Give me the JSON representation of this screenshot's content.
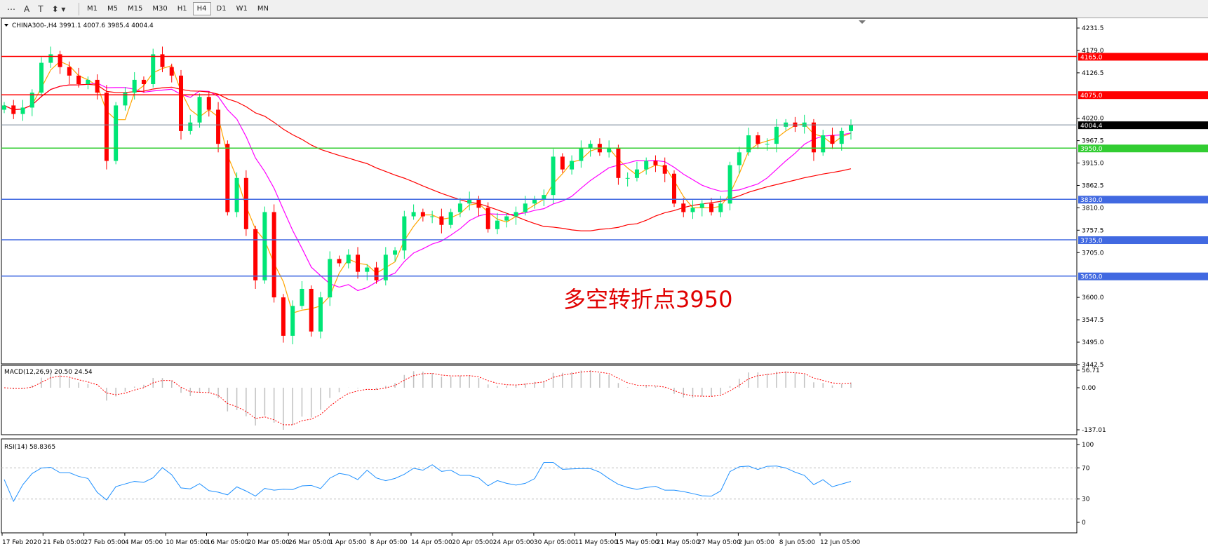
{
  "toolbar": {
    "tools": [
      {
        "name": "fibo-tool-icon",
        "glyph": "⋯"
      },
      {
        "name": "text-tool-icon",
        "glyph": "A"
      },
      {
        "name": "text-label-icon",
        "glyph": "T"
      },
      {
        "name": "arrows-tool-icon",
        "glyph": "⬍ ▾"
      }
    ],
    "timeframes": [
      "M1",
      "M5",
      "M15",
      "M30",
      "H1",
      "H4",
      "D1",
      "W1",
      "MN"
    ],
    "active_timeframe": "H4"
  },
  "chart": {
    "symbol_header": "CHINA300-,H4  3991.1 4007.6 3985.4 4004.4",
    "annotation": "多空转折点3950",
    "price_ticks": [
      "4231.5",
      "4179.0",
      "4126.5",
      "4020.0",
      "3967.5",
      "3915.0",
      "3862.5",
      "3810.0",
      "3757.5",
      "3705.0",
      "3600.0",
      "3547.5",
      "3495.0",
      "3442.5"
    ],
    "levels": [
      {
        "label": "4165.0",
        "value": 4165,
        "color": "#ff0000"
      },
      {
        "label": "4075.0",
        "value": 4075,
        "color": "#ff0000"
      },
      {
        "label": "3950.0",
        "value": 3950,
        "color": "#32cd32"
      },
      {
        "label": "3830.0",
        "value": 3830,
        "color": "#4169e1"
      },
      {
        "label": "3735.0",
        "value": 3735,
        "color": "#4169e1"
      },
      {
        "label": "3650.0",
        "value": 3650,
        "color": "#4169e1"
      }
    ],
    "current_price": {
      "label": "4004.4",
      "value": 4004.4,
      "color": "#000000"
    },
    "colors": {
      "bull": "#00e676",
      "bear": "#ff0000",
      "ma_fast": "#ffa500",
      "ma_mid": "#ff00ff",
      "ma_slow": "#ff0000"
    },
    "closes": [
      4050,
      4030,
      4045,
      4080,
      4150,
      4170,
      4140,
      4120,
      4100,
      4110,
      4080,
      3920,
      4050,
      4080,
      4110,
      4100,
      4170,
      4140,
      4120,
      3990,
      4010,
      4070,
      4040,
      3960,
      3800,
      3880,
      3760,
      3640,
      3800,
      3600,
      3510,
      3580,
      3620,
      3520,
      3600,
      3690,
      3680,
      3700,
      3660,
      3670,
      3640,
      3700,
      3710,
      3790,
      3800,
      3790,
      3790,
      3770,
      3800,
      3820,
      3830,
      3810,
      3760,
      3780,
      3790,
      3800,
      3820,
      3830,
      3840,
      3930,
      3900,
      3920,
      3950,
      3960,
      3940,
      3950,
      3880,
      3880,
      3900,
      3920,
      3910,
      3890,
      3820,
      3800,
      3810,
      3820,
      3800,
      3820,
      3910,
      3940,
      3980,
      3960,
      3960,
      4000,
      4010,
      4000,
      4010,
      3940,
      3980,
      3960,
      3990,
      4004.4
    ]
  },
  "macd": {
    "label": "MACD(12,26,9) 20.50 24.54",
    "ticks": [
      "56.71",
      "0.00",
      "-137.01"
    ]
  },
  "rsi": {
    "label": "RSI(14) 58.8365",
    "ticks": [
      "100",
      "70",
      "30",
      "0"
    ]
  },
  "time_axis": [
    "17 Feb 2020",
    "21 Feb 05:00",
    "27 Feb 05:00",
    "4 Mar 05:00",
    "10 Mar 05:00",
    "16 Mar 05:00",
    "20 Mar 05:00",
    "26 Mar 05:00",
    "1 Apr 05:00",
    "8 Apr 05:00",
    "14 Apr 05:00",
    "20 Apr 05:00",
    "24 Apr 05:00",
    "30 Apr 05:00",
    "11 May 05:00",
    "15 May 05:00",
    "21 May 05:00",
    "27 May 05:00",
    "2 Jun 05:00",
    "8 Jun 05:00",
    "12 Jun 05:00"
  ]
}
